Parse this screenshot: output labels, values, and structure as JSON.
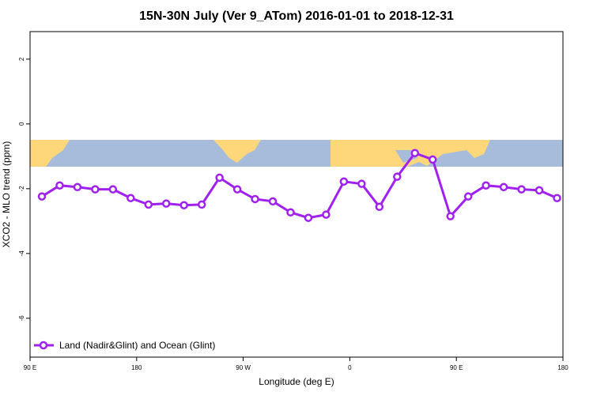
{
  "chart_data": {
    "type": "line",
    "title": "15N-30N July (Ver 9_ATom)   2016-01-01 to 2018-12-31",
    "x_label": "Longitude (deg E)",
    "y_label": "XCO2 - MLO trend (ppm)",
    "x": [
      100,
      115,
      130,
      145,
      160,
      175,
      190,
      205,
      220,
      235,
      250,
      265,
      280,
      295,
      310,
      325,
      340,
      355,
      370,
      385,
      400,
      415,
      430,
      445,
      460,
      475,
      490,
      505,
      520,
      535
    ],
    "series": [
      {
        "name": "Land (Nadir&Glint) and Ocean (Glint)",
        "color": "#a020f0",
        "values": [
          -2.24,
          -1.9,
          -1.95,
          -2.02,
          -2.02,
          -2.29,
          -2.49,
          -2.46,
          -2.51,
          -2.49,
          -1.66,
          -2.02,
          -2.32,
          -2.39,
          -2.73,
          -2.9,
          -2.8,
          -1.78,
          -1.85,
          -2.56,
          -1.63,
          -0.9,
          -1.1,
          -2.85,
          -2.24,
          -1.9,
          -1.95,
          -2.02,
          -2.05,
          -2.29
        ]
      }
    ],
    "xlim": [
      90,
      540
    ],
    "ylim": [
      -7.2,
      2.85
    ],
    "xticks": [
      {
        "value": 90,
        "label": "90 E"
      },
      {
        "value": 180,
        "label": "180"
      },
      {
        "value": 270,
        "label": "90 W"
      },
      {
        "value": 360,
        "label": "0"
      },
      {
        "value": 450,
        "label": "90 E"
      },
      {
        "value": 540,
        "label": "180"
      }
    ],
    "yticks": [
      2,
      0,
      -2,
      -4,
      -6
    ],
    "legend": "bottom-left"
  }
}
